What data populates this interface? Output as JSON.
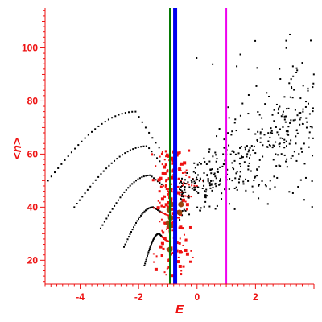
{
  "chart_data": {
    "type": "scatter",
    "xlabel": "E",
    "ylabel": "<n>",
    "xlim": [
      -5.2,
      4.0
    ],
    "ylim": [
      11,
      115
    ],
    "xticks": [
      "-4",
      "-2",
      "0",
      "2"
    ],
    "yticks": [
      "20",
      "40",
      "60",
      "80",
      "100"
    ],
    "xtick_values": [
      -4,
      -2,
      0,
      2
    ],
    "ytick_values": [
      20,
      40,
      60,
      80,
      100
    ],
    "grid": false,
    "colors": {
      "axis": "#ee1111",
      "black_points": "#000000",
      "red_points": "#ee1111",
      "brown_points": "#994411",
      "green_line": "#007700",
      "blue_line": "#0000ee",
      "magenta_line": "#ee00ee"
    },
    "vertical_lines": [
      {
        "x": -0.93,
        "color": "#007700"
      },
      {
        "x": -0.75,
        "color": "#0000ee"
      },
      {
        "x": 1.0,
        "color": "#ee00ee"
      }
    ],
    "arcs": [
      {
        "x_start": -5.1,
        "y_start": 50,
        "x_peak": -2.1,
        "y_peak": 76,
        "x_end": 0.2,
        "y_end": 50
      },
      {
        "x_start": -4.2,
        "y_start": 40,
        "x_peak": -1.7,
        "y_peak": 63,
        "x_end": 0.0,
        "y_end": 48
      },
      {
        "x_start": -3.3,
        "y_start": 32,
        "x_peak": -1.6,
        "y_peak": 52,
        "x_end": -0.2,
        "y_end": 44
      },
      {
        "x_start": -2.5,
        "y_start": 25,
        "x_peak": -1.5,
        "y_peak": 40,
        "x_end": -0.6,
        "y_end": 36
      },
      {
        "x_start": -1.8,
        "y_start": 18,
        "x_peak": -1.3,
        "y_peak": 30,
        "x_end": -0.9,
        "y_end": 27
      }
    ],
    "cloud": {
      "x_min": -0.6,
      "x_max": 4.0,
      "y_at_xmin": 44,
      "y_at_xmax": 75,
      "spread_min": 6,
      "spread_max": 22,
      "count": 420
    },
    "red_cluster": {
      "x_center": -0.85,
      "x_spread": 0.55,
      "y_min": 14,
      "y_max": 62,
      "count": 170
    },
    "brown_cluster": [
      {
        "x": -0.92,
        "y": 33
      },
      {
        "x": -0.9,
        "y": 36
      },
      {
        "x": -0.95,
        "y": 39
      },
      {
        "x": -0.88,
        "y": 41
      },
      {
        "x": -0.93,
        "y": 24
      },
      {
        "x": -0.6,
        "y": 38
      },
      {
        "x": -0.55,
        "y": 41
      },
      {
        "x": -0.98,
        "y": 34
      }
    ]
  }
}
